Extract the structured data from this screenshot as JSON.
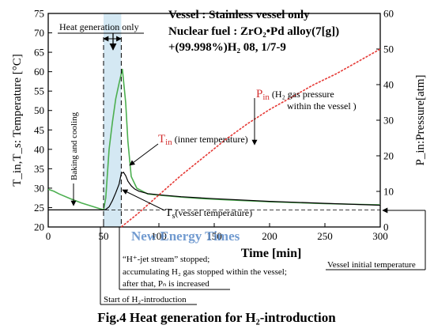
{
  "chart_data": {
    "type": "line",
    "title": "Fig.4  Heat generation for H₂-introduction",
    "xlabel": "Time [min]",
    "ylabel_left": "T_in,T_s: Temperature [°C]",
    "ylabel_right": "P_in:Pressure[atm]",
    "xlim": [
      0,
      300
    ],
    "ylim_left": [
      20,
      75
    ],
    "ylim_right": [
      0,
      60
    ],
    "x_ticks": [
      0,
      50,
      100,
      150,
      200,
      250,
      300
    ],
    "y_left_ticks": [
      20,
      25,
      30,
      35,
      40,
      45,
      50,
      55,
      60,
      65,
      70,
      75
    ],
    "y_right_ticks": [
      0,
      10,
      20,
      30,
      40,
      50,
      60
    ],
    "grid": false,
    "info": {
      "line1": "Vessel : Stainless vessel only",
      "line2_prefix": "Nuclear fuel : ZrO₂•Pd alloy(7[g])",
      "line3": "+(99.998%)H₂    08, 1/7-9"
    },
    "shaded_region": {
      "x": [
        50,
        66
      ],
      "label": "Heat generation only"
    },
    "annotations": {
      "baking": "Baking and cooling",
      "tin_label_main": "T",
      "tin_label_sub": "in",
      "tin_desc": "(inner temperature)",
      "pin_label_main": "P",
      "pin_label_sub": "in",
      "pin_desc_1": "(H₂ gas pressure",
      "pin_desc_2": "within the vessel )",
      "ts_label_main": "T",
      "ts_label_sub": "s",
      "ts_desc": "(vessel temperature)",
      "stopped_1": "“H⁺-jet stream” stopped;",
      "stopped_2": "accumulating H₂ gas stopped within the vessel;",
      "stopped_3": "after that, Pₙ is increased",
      "start": "Start of H₂-introduction",
      "vessel_initial": "Vessel initial temperature",
      "watermark": "New Energy Times"
    },
    "series": [
      {
        "name": "T_in",
        "color": "#4caf50",
        "axis": "left",
        "x": [
          0,
          5,
          10,
          20,
          30,
          40,
          50,
          52,
          55,
          58,
          61,
          64,
          67,
          70,
          72,
          75,
          80,
          90,
          100,
          120,
          140,
          160,
          200,
          250,
          300
        ],
        "y": [
          29.7,
          29.2,
          28.5,
          27.3,
          26.2,
          25.3,
          24.4,
          27.5,
          40.0,
          47.0,
          53.0,
          57.0,
          60.7,
          52.0,
          42.0,
          33.0,
          30.0,
          28.5,
          28.2,
          27.7,
          27.3,
          27.0,
          26.5,
          26.0,
          25.7
        ]
      },
      {
        "name": "T_s",
        "color": "#000000",
        "axis": "left",
        "x": [
          0,
          20,
          40,
          50,
          52,
          55,
          58,
          61,
          64,
          66,
          68,
          70,
          72,
          75,
          78,
          82,
          90,
          100,
          120,
          150,
          200,
          250,
          300
        ],
        "y": [
          24.4,
          24.4,
          24.4,
          24.4,
          24.5,
          25.2,
          26.8,
          28.8,
          31.0,
          33.8,
          34.1,
          33.2,
          31.8,
          30.6,
          29.8,
          29.2,
          28.6,
          28.3,
          27.8,
          27.3,
          26.6,
          26.1,
          25.6
        ]
      },
      {
        "name": "P_in",
        "color": "#e53935",
        "axis": "right",
        "x": [
          66,
          80,
          100,
          120,
          140,
          160,
          180,
          200,
          220,
          240,
          260,
          280,
          300
        ],
        "y": [
          0,
          3.5,
          9.0,
          14.5,
          19.5,
          24.5,
          29.0,
          33.0,
          36.5,
          40.0,
          43.0,
          46.5,
          50.0
        ]
      }
    ]
  }
}
